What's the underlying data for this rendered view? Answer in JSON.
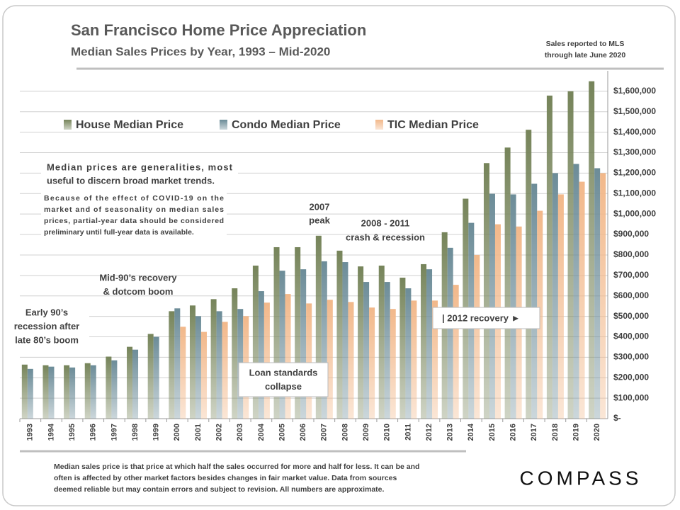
{
  "chart_data": {
    "type": "bar",
    "title": "San Francisco Home Price Appreciation",
    "subtitle": "Median Sales Prices by Year, 1993 – Mid-2020",
    "note": [
      "Sales reported to MLS",
      "through late June 2020"
    ],
    "categories": [
      "1993",
      "1994",
      "1995",
      "1996",
      "1997",
      "1998",
      "1999",
      "2000",
      "2001",
      "2002",
      "2003",
      "2004",
      "2005",
      "2006",
      "2007",
      "2008",
      "2009",
      "2010",
      "2011",
      "2012",
      "2013",
      "2014",
      "2015",
      "2016",
      "2017",
      "2018",
      "2019",
      "2020"
    ],
    "series": [
      {
        "name": "House Median Price",
        "color": "#76845a",
        "values": [
          264000,
          261000,
          261000,
          271000,
          303000,
          351000,
          414000,
          525000,
          553000,
          584000,
          637000,
          748000,
          838000,
          838000,
          894000,
          821000,
          744000,
          748000,
          689000,
          755000,
          911000,
          1075000,
          1249000,
          1325000,
          1412000,
          1579000,
          1600000,
          1649000
        ]
      },
      {
        "name": "Condo Median Price",
        "color": "#6c8c98",
        "values": [
          243000,
          254000,
          250000,
          261000,
          285000,
          337000,
          400000,
          539000,
          501000,
          525000,
          536000,
          623000,
          723000,
          730000,
          769000,
          765000,
          668000,
          668000,
          637000,
          730000,
          835000,
          957000,
          1099000,
          1096000,
          1148000,
          1200000,
          1245000,
          1224000
        ]
      },
      {
        "name": "TIC Median Price",
        "color": "#f2b88a",
        "values": [
          null,
          null,
          null,
          null,
          null,
          null,
          null,
          449000,
          424000,
          473000,
          501000,
          567000,
          609000,
          563000,
          581000,
          570000,
          543000,
          536000,
          577000,
          577000,
          654000,
          800000,
          950000,
          939000,
          1016000,
          1096000,
          1158000,
          1200000
        ]
      }
    ],
    "ylim": [
      0,
      1700000
    ],
    "yticks": [
      {
        "value": 0,
        "label": "$-"
      },
      {
        "value": 100000,
        "label": "$100,000"
      },
      {
        "value": 200000,
        "label": "$200,000"
      },
      {
        "value": 300000,
        "label": "$300,000"
      },
      {
        "value": 400000,
        "label": "$400,000"
      },
      {
        "value": 500000,
        "label": "$500,000"
      },
      {
        "value": 600000,
        "label": "$600,000"
      },
      {
        "value": 700000,
        "label": "$700,000"
      },
      {
        "value": 800000,
        "label": "$800,000"
      },
      {
        "value": 900000,
        "label": "$900,000"
      },
      {
        "value": 1000000,
        "label": "$1,000,000"
      },
      {
        "value": 1100000,
        "label": "$1,100,000"
      },
      {
        "value": 1200000,
        "label": "$1,200,000"
      },
      {
        "value": 1300000,
        "label": "$1,300,000"
      },
      {
        "value": 1400000,
        "label": "$1,400,000"
      },
      {
        "value": 1500000,
        "label": "$1,500,000"
      },
      {
        "value": 1600000,
        "label": "$1,600,000"
      }
    ],
    "grid": true,
    "legend": "top",
    "annotations": [
      {
        "lines": [
          "Median prices are generalities, most",
          "useful to discern broad market trends."
        ]
      },
      {
        "lines": [
          "Because of the effect of COVID-19 on the",
          "market and of seasonality on median sales",
          "prices, partial-year data should be considered",
          "preliminary until full-year data is available."
        ]
      },
      {
        "lines": [
          "Early 90’s",
          "recession after",
          "late 80’s boom"
        ]
      },
      {
        "lines": [
          "Mid-90’s recovery",
          "& dotcom boom"
        ]
      },
      {
        "lines": [
          "2007",
          "peak"
        ]
      },
      {
        "lines": [
          "2008 - 2011",
          "crash & recession"
        ]
      },
      {
        "lines": [
          "Loan standards",
          "collapse"
        ]
      },
      {
        "lines": [
          "| 2012 recovery ►"
        ]
      }
    ],
    "footnote": [
      "Median sales price is that price at which half the sales occurred for more and half for less. It can be and",
      "often is affected by other market factors besides changes in fair market value. Data from sources",
      "deemed reliable but may contain errors and subject to revision.  All numbers are approximate."
    ],
    "brand": "COMPASS"
  }
}
